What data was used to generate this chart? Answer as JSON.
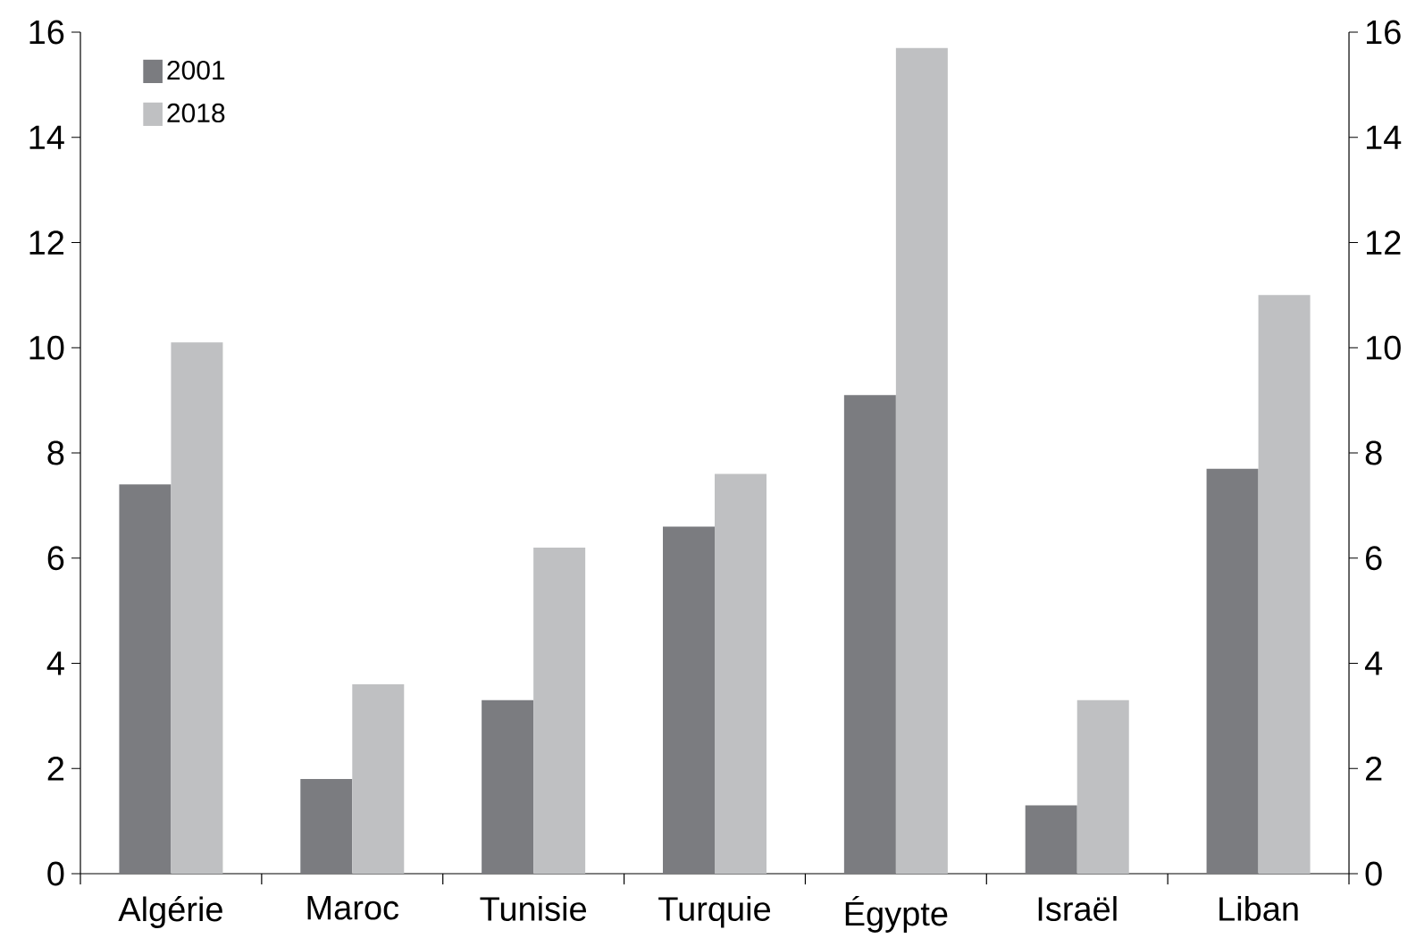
{
  "chart_data": {
    "type": "bar",
    "categories": [
      "Algérie",
      "Maroc",
      "Tunisie",
      "Turquie",
      "Égypte",
      "Israël",
      "Liban"
    ],
    "series": [
      {
        "name": "2001",
        "color": "#7b7c80",
        "values": [
          7.4,
          1.8,
          3.3,
          6.6,
          9.1,
          1.3,
          7.7
        ]
      },
      {
        "name": "2018",
        "color": "#bfc0c2",
        "values": [
          10.1,
          3.6,
          6.2,
          7.6,
          15.7,
          3.3,
          11.0
        ]
      }
    ],
    "ylim": [
      0,
      16
    ],
    "yticks": [
      0,
      2,
      4,
      6,
      8,
      10,
      12,
      14,
      16
    ],
    "y2lim": [
      0,
      16
    ],
    "y2ticks": [
      0,
      2,
      4,
      6,
      8,
      10,
      12,
      14,
      16
    ],
    "legend": "top left",
    "grid": false
  }
}
